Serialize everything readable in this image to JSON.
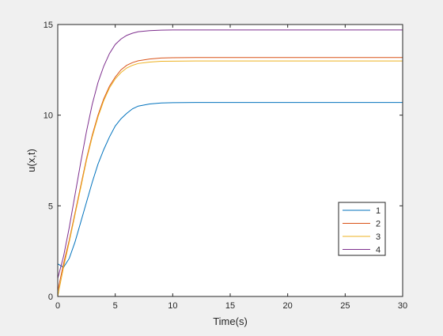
{
  "chart_data": {
    "type": "line",
    "title": "",
    "xlabel": "Time(s)",
    "ylabel": "u(x,t)",
    "xlim": [
      0,
      30
    ],
    "ylim": [
      0,
      15
    ],
    "xticks": [
      0,
      5,
      10,
      15,
      20,
      25,
      30
    ],
    "yticks": [
      0,
      5,
      10,
      15
    ],
    "xtick_labels": [
      "0",
      "5",
      "10",
      "15",
      "20",
      "25",
      "30"
    ],
    "ytick_labels": [
      "0",
      "5",
      "10",
      "15"
    ],
    "grid": false,
    "legend_position": "bottom-right",
    "series": [
      {
        "name": "1",
        "color": "#0072BD",
        "x": [
          0,
          0.5,
          1,
          1.5,
          2,
          2.5,
          3,
          3.5,
          4,
          4.5,
          5,
          5.5,
          6,
          6.5,
          7,
          8,
          9,
          10,
          12,
          15,
          20,
          25,
          30
        ],
        "y": [
          1.8,
          1.6,
          2.1,
          3.0,
          4.1,
          5.2,
          6.3,
          7.3,
          8.1,
          8.8,
          9.4,
          9.8,
          10.1,
          10.35,
          10.5,
          10.62,
          10.67,
          10.69,
          10.7,
          10.7,
          10.7,
          10.7,
          10.7
        ]
      },
      {
        "name": "2",
        "color": "#D95319",
        "x": [
          0,
          0.5,
          1,
          1.5,
          2,
          2.5,
          3,
          3.5,
          4,
          4.5,
          5,
          5.5,
          6,
          6.5,
          7,
          8,
          9,
          10,
          12,
          15,
          20,
          25,
          30
        ],
        "y": [
          0.3,
          1.8,
          3.1,
          4.6,
          6.1,
          7.6,
          8.9,
          10.0,
          10.9,
          11.6,
          12.1,
          12.5,
          12.75,
          12.9,
          13.0,
          13.1,
          13.15,
          13.17,
          13.18,
          13.18,
          13.18,
          13.18,
          13.18
        ]
      },
      {
        "name": "3",
        "color": "#EDB120",
        "x": [
          0,
          0.5,
          1,
          1.5,
          2,
          2.5,
          3,
          3.5,
          4,
          4.5,
          5,
          5.5,
          6,
          6.5,
          7,
          8,
          9,
          10,
          12,
          15,
          20,
          25,
          30
        ],
        "y": [
          0.0,
          1.6,
          3.0,
          4.5,
          6.0,
          7.5,
          8.8,
          9.9,
          10.8,
          11.5,
          12.0,
          12.35,
          12.6,
          12.75,
          12.85,
          12.93,
          12.97,
          12.98,
          12.99,
          12.99,
          12.99,
          12.99,
          12.99
        ]
      },
      {
        "name": "4",
        "color": "#7E2F8E",
        "x": [
          0,
          0.5,
          1,
          1.5,
          2,
          2.5,
          3,
          3.5,
          4,
          4.5,
          5,
          5.5,
          6,
          6.5,
          7,
          8,
          9,
          10,
          12,
          15,
          20,
          25,
          30
        ],
        "y": [
          1.0,
          2.2,
          3.8,
          5.6,
          7.4,
          9.1,
          10.6,
          11.8,
          12.7,
          13.4,
          13.9,
          14.2,
          14.4,
          14.52,
          14.6,
          14.66,
          14.69,
          14.7,
          14.7,
          14.7,
          14.7,
          14.7,
          14.7
        ]
      }
    ]
  }
}
